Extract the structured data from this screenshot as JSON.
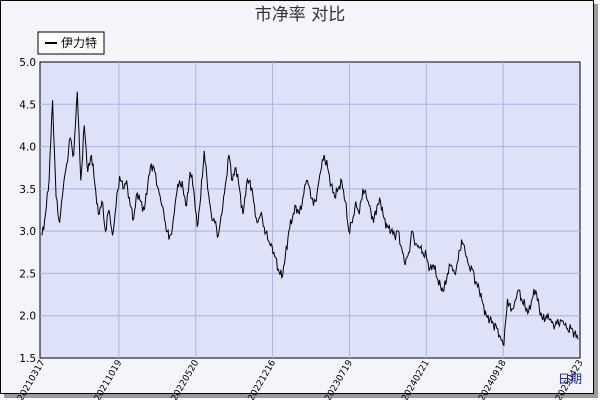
{
  "chart_data": {
    "type": "line",
    "title": "市净率  对比",
    "legend": [
      {
        "name": "伊力特",
        "color": "#000000"
      }
    ],
    "x_axis_label": "日期",
    "ylim": [
      1.5,
      5.0
    ],
    "y_ticks": [
      "1.5",
      "2.0",
      "2.5",
      "3.0",
      "3.5",
      "4.0",
      "4.5",
      "5.0"
    ],
    "x_tick_labels": [
      "20210317",
      "20211019",
      "20220520",
      "20221216",
      "20230719",
      "20240221",
      "20240918",
      "20250423"
    ],
    "grid": true,
    "legend_position": "top-left",
    "series": [
      {
        "name": "伊力特",
        "color": "#000000",
        "values": [
          2.95,
          3.2,
          3.6,
          4.55,
          3.4,
          3.1,
          3.5,
          3.8,
          4.1,
          3.9,
          4.65,
          3.6,
          4.25,
          3.7,
          3.9,
          3.55,
          3.2,
          3.35,
          3.0,
          3.25,
          2.95,
          3.3,
          3.65,
          3.5,
          3.6,
          3.3,
          3.15,
          3.45,
          3.35,
          3.25,
          3.55,
          3.8,
          3.7,
          3.5,
          3.3,
          3.1,
          2.9,
          3.05,
          3.4,
          3.6,
          3.5,
          3.3,
          3.7,
          3.5,
          3.05,
          3.4,
          3.95,
          3.5,
          3.2,
          3.1,
          2.95,
          3.2,
          3.55,
          3.9,
          3.6,
          3.75,
          3.5,
          3.2,
          3.55,
          3.6,
          3.35,
          3.1,
          3.2,
          3.05,
          2.9,
          2.85,
          2.7,
          2.55,
          2.45,
          2.7,
          3.0,
          3.15,
          3.3,
          3.2,
          3.4,
          3.6,
          3.5,
          3.3,
          3.45,
          3.7,
          3.9,
          3.75,
          3.55,
          3.4,
          3.5,
          3.6,
          3.35,
          3.0,
          3.1,
          3.35,
          3.2,
          3.5,
          3.4,
          3.3,
          3.1,
          3.3,
          3.35,
          3.15,
          3.05,
          3.0,
          2.95,
          3.0,
          2.8,
          2.6,
          2.75,
          3.0,
          2.85,
          2.8,
          2.75,
          2.7,
          2.55,
          2.6,
          2.45,
          2.35,
          2.3,
          2.5,
          2.6,
          2.5,
          2.65,
          2.9,
          2.75,
          2.6,
          2.55,
          2.4,
          2.3,
          2.15,
          2.0,
          1.95,
          1.9,
          1.85,
          1.75,
          1.65,
          2.2,
          2.05,
          2.15,
          2.3,
          2.2,
          2.1,
          2.05,
          2.2,
          2.3,
          2.1,
          1.95,
          2.0,
          1.95,
          1.9,
          1.9,
          1.95,
          1.9,
          1.85,
          1.85,
          1.8,
          1.72
        ]
      }
    ]
  }
}
